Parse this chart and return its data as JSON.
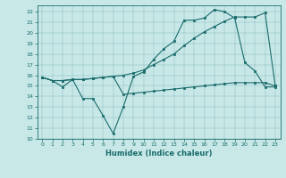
{
  "xlabel": "Humidex (Indice chaleur)",
  "bg_color": "#c8e8e8",
  "line_color": "#1a6b6b",
  "xlim": [
    -0.5,
    23.5
  ],
  "ylim": [
    10,
    22.6
  ],
  "yticks": [
    10,
    11,
    12,
    13,
    14,
    15,
    16,
    17,
    18,
    19,
    20,
    21,
    22
  ],
  "xticks": [
    0,
    1,
    2,
    3,
    4,
    5,
    6,
    7,
    8,
    9,
    10,
    11,
    12,
    13,
    14,
    15,
    16,
    17,
    18,
    19,
    20,
    21,
    22,
    23
  ],
  "line1_x": [
    0,
    1,
    2,
    3,
    4,
    5,
    6,
    7,
    8,
    9,
    10,
    11,
    12,
    13,
    14,
    15,
    16,
    17,
    18,
    19,
    20,
    21,
    22,
    23
  ],
  "line1_y": [
    15.8,
    15.5,
    14.9,
    15.6,
    13.8,
    13.8,
    12.2,
    10.5,
    13.0,
    15.9,
    16.3,
    17.5,
    18.5,
    19.2,
    21.2,
    21.2,
    21.4,
    22.2,
    22.0,
    21.4,
    17.2,
    16.4,
    14.9,
    14.9
  ],
  "line2_x": [
    0,
    1,
    2,
    3,
    4,
    5,
    6,
    7,
    8,
    9,
    10,
    11,
    12,
    13,
    14,
    15,
    16,
    17,
    18,
    19,
    20,
    21,
    22,
    23
  ],
  "line2_y": [
    15.8,
    15.5,
    15.5,
    15.6,
    15.6,
    15.7,
    15.8,
    15.9,
    14.2,
    14.3,
    14.4,
    14.5,
    14.6,
    14.7,
    14.8,
    14.9,
    15.0,
    15.1,
    15.2,
    15.3,
    15.3,
    15.3,
    15.3,
    15.0
  ],
  "line3_x": [
    0,
    1,
    2,
    3,
    4,
    5,
    6,
    7,
    8,
    9,
    10,
    11,
    12,
    13,
    14,
    15,
    16,
    17,
    18,
    19,
    20,
    21,
    22,
    23
  ],
  "line3_y": [
    15.8,
    15.5,
    15.5,
    15.6,
    15.6,
    15.7,
    15.8,
    15.9,
    16.0,
    16.2,
    16.5,
    17.0,
    17.5,
    18.0,
    18.8,
    19.5,
    20.1,
    20.6,
    21.1,
    21.5,
    21.5,
    21.5,
    21.9,
    15.0
  ]
}
